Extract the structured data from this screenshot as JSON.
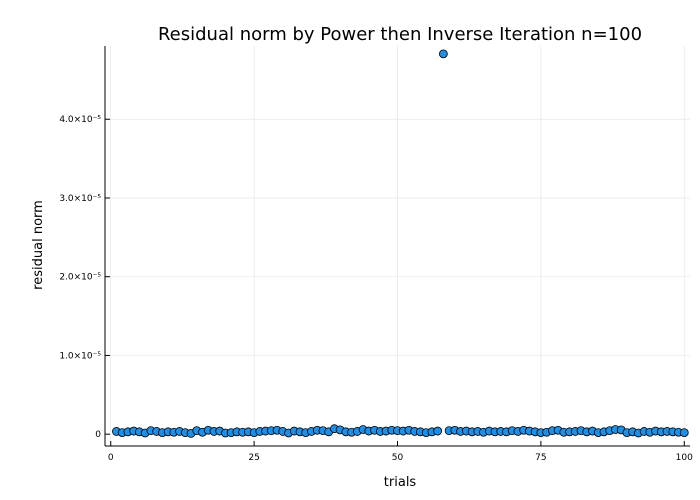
{
  "chart_data": {
    "type": "scatter",
    "title": "Residual norm by Power then Inverse Iteration  n=100",
    "xlabel": "trials",
    "ylabel": "residual norm",
    "xlim": [
      -1,
      101
    ],
    "ylim": [
      -1.5e-06,
      4.93e-05
    ],
    "xticks": [
      0,
      25,
      50,
      75,
      100
    ],
    "xtick_labels": [
      "0",
      "25",
      "50",
      "75",
      "100"
    ],
    "yticks": [
      0,
      1e-05,
      2e-05,
      3e-05,
      4e-05
    ],
    "ytick_labels": [
      "0",
      "1.0×10⁻⁵",
      "2.0×10⁻⁵",
      "3.0×10⁻⁵",
      "4.0×10⁻⁵"
    ],
    "grid": true,
    "legend": "none",
    "marker_color": "#1f8fe5",
    "series": [
      {
        "x": [
          1,
          2,
          3,
          4,
          5,
          6,
          7,
          8,
          9,
          10,
          11,
          12,
          13,
          14,
          15,
          16,
          17,
          18,
          19,
          20,
          21,
          22,
          23,
          24,
          25,
          26,
          27,
          28,
          29,
          30,
          31,
          32,
          33,
          34,
          35,
          36,
          37,
          38,
          39,
          40,
          41,
          42,
          43,
          44,
          45,
          46,
          47,
          48,
          49,
          50,
          51,
          52,
          53,
          54,
          55,
          56,
          57,
          58,
          59,
          60,
          61,
          62,
          63,
          64,
          65,
          66,
          67,
          68,
          69,
          70,
          71,
          72,
          73,
          74,
          75,
          76,
          77,
          78,
          79,
          80,
          81,
          82,
          83,
          84,
          85,
          86,
          87,
          88,
          89,
          90,
          91,
          92,
          93,
          94,
          95,
          96,
          97,
          98,
          99,
          100
        ],
        "y": [
          3.5e-07,
          2e-07,
          3e-07,
          4e-07,
          3e-07,
          1.5e-07,
          4.5e-07,
          3.5e-07,
          2e-07,
          3e-07,
          2.5e-07,
          3.5e-07,
          2e-07,
          1e-07,
          4.5e-07,
          2.5e-07,
          5e-07,
          3.5e-07,
          4e-07,
          1.5e-07,
          2e-07,
          3e-07,
          2.5e-07,
          3e-07,
          2e-07,
          3.5e-07,
          4e-07,
          4.5e-07,
          5e-07,
          3.5e-07,
          1.5e-07,
          4e-07,
          3e-07,
          2e-07,
          3.5e-07,
          5e-07,
          4.5e-07,
          3e-07,
          7e-07,
          5.5e-07,
          3e-07,
          2.5e-07,
          3.5e-07,
          6e-07,
          4e-07,
          5e-07,
          3.5e-07,
          4e-07,
          5e-07,
          4.5e-07,
          4e-07,
          5e-07,
          3.5e-07,
          3e-07,
          2e-07,
          3e-07,
          4e-07,
          4.83e-05,
          4.5e-07,
          5e-07,
          3.5e-07,
          4e-07,
          3e-07,
          3.5e-07,
          2.5e-07,
          4e-07,
          3e-07,
          3.5e-07,
          3e-07,
          4.5e-07,
          3.5e-07,
          5e-07,
          4e-07,
          3e-07,
          2e-07,
          2.5e-07,
          4.5e-07,
          5e-07,
          2.5e-07,
          3e-07,
          3.5e-07,
          4.5e-07,
          3e-07,
          4e-07,
          2e-07,
          3e-07,
          4.5e-07,
          6e-07,
          5.5e-07,
          2e-07,
          3e-07,
          1.5e-07,
          3.5e-07,
          2.5e-07,
          4e-07,
          3e-07,
          3.5e-07,
          3e-07,
          2.5e-07,
          2e-07
        ]
      }
    ]
  }
}
